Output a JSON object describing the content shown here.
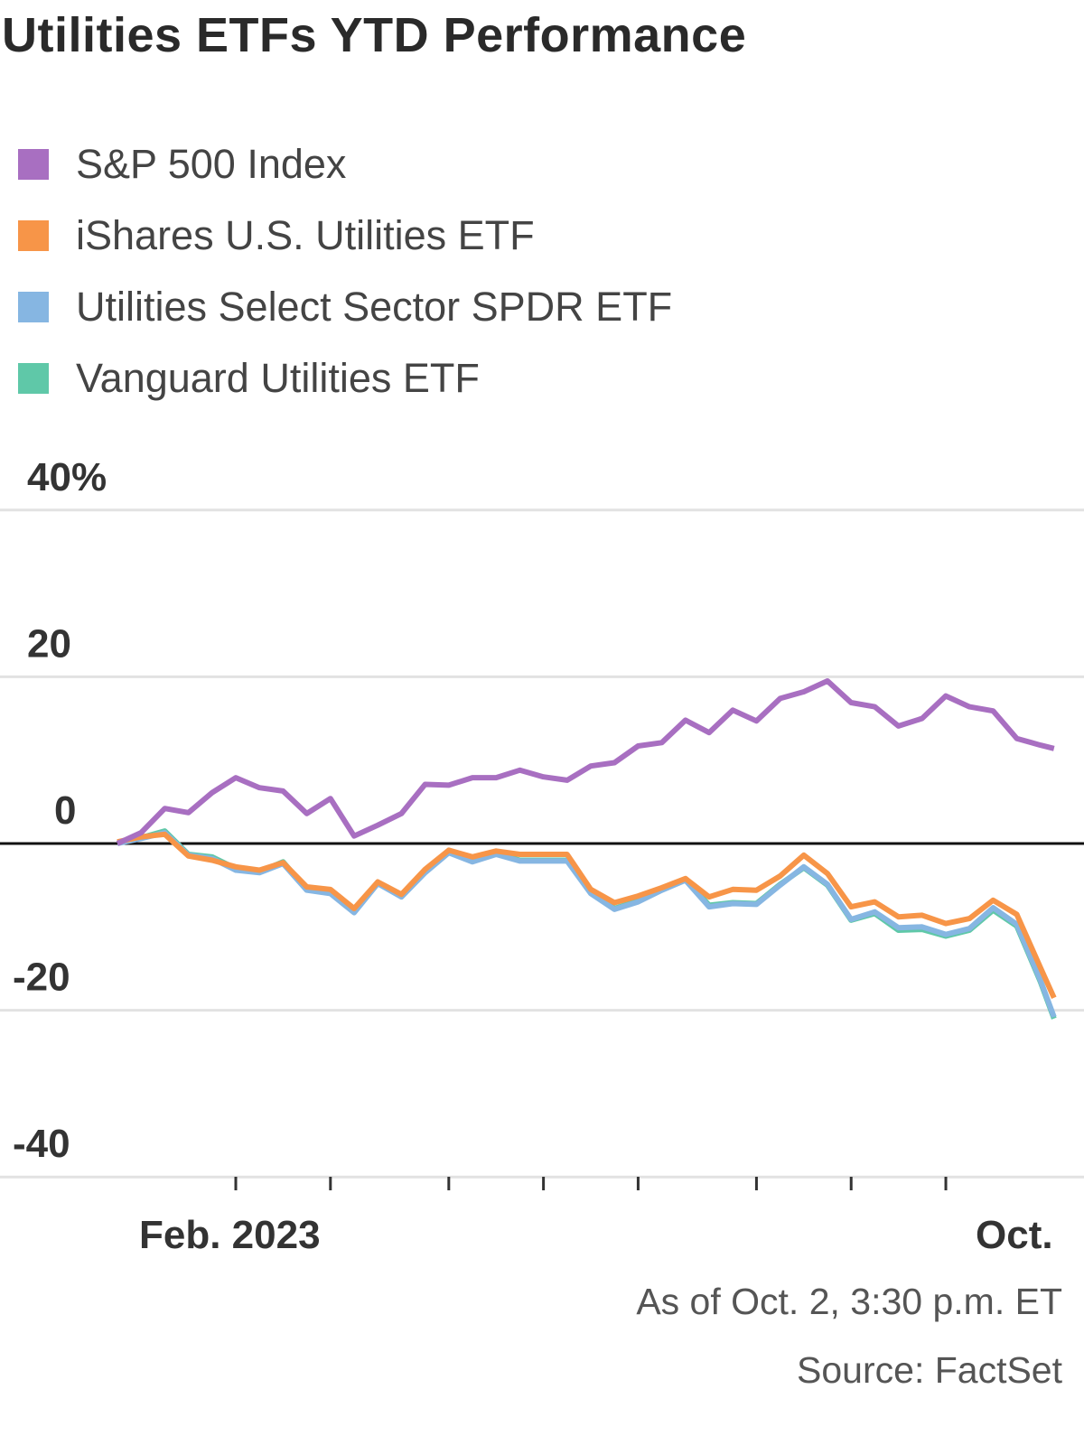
{
  "chart_data": {
    "type": "line",
    "title": "Utilities ETFs YTD Performance",
    "ylim": [
      -40,
      40
    ],
    "yticks": [
      {
        "value": 40,
        "label": "40%"
      },
      {
        "value": 20,
        "label": "20"
      },
      {
        "value": 0,
        "label": "0"
      },
      {
        "value": -20,
        "label": "-20"
      },
      {
        "value": -40,
        "label": "-40"
      }
    ],
    "xticks": [
      {
        "date": "2023-02-02",
        "label": "Feb. 2023"
      },
      {
        "date": "2023-03-02",
        "label": ""
      },
      {
        "date": "2023-04-06",
        "label": ""
      },
      {
        "date": "2023-05-04",
        "label": ""
      },
      {
        "date": "2023-06-01",
        "label": ""
      },
      {
        "date": "2023-07-06",
        "label": ""
      },
      {
        "date": "2023-08-03",
        "label": ""
      },
      {
        "date": "2023-08-31",
        "label": ""
      },
      {
        "date": "2023-10-02",
        "label": "Oct.",
        "tick": false
      }
    ],
    "grid": true,
    "legend_placement": "top-left",
    "x": [
      "2022-12-29",
      "2023-01-05",
      "2023-01-12",
      "2023-01-19",
      "2023-01-26",
      "2023-02-02",
      "2023-02-09",
      "2023-02-16",
      "2023-02-23",
      "2023-03-02",
      "2023-03-09",
      "2023-03-16",
      "2023-03-23",
      "2023-03-30",
      "2023-04-06",
      "2023-04-13",
      "2023-04-20",
      "2023-04-27",
      "2023-05-04",
      "2023-05-11",
      "2023-05-18",
      "2023-05-25",
      "2023-06-01",
      "2023-06-08",
      "2023-06-15",
      "2023-06-22",
      "2023-06-29",
      "2023-07-06",
      "2023-07-13",
      "2023-07-20",
      "2023-07-27",
      "2023-08-03",
      "2023-08-10",
      "2023-08-17",
      "2023-08-24",
      "2023-08-31",
      "2023-09-07",
      "2023-09-14",
      "2023-09-21",
      "2023-09-28",
      "2023-10-02"
    ],
    "series": [
      {
        "name": "S&P 500 Index",
        "color": "#a86fc1",
        "values": [
          0,
          1.3,
          4.2,
          3.7,
          6.1,
          7.9,
          6.7,
          6.3,
          3.6,
          5.4,
          0.9,
          2.2,
          3.6,
          7.1,
          7.0,
          7.9,
          7.9,
          8.8,
          8.0,
          7.6,
          9.3,
          9.7,
          11.7,
          12.1,
          14.8,
          13.3,
          16.0,
          14.7,
          17.4,
          18.2,
          19.5,
          16.9,
          16.4,
          14.1,
          15.0,
          17.7,
          16.4,
          15.9,
          12.6,
          11.8,
          11.4
        ]
      },
      {
        "name": "Vanguard Utilities ETF",
        "color": "#5fc8a8",
        "values": [
          0.1,
          0.7,
          1.5,
          -1.3,
          -1.6,
          -3.0,
          -3.4,
          -2.2,
          -5.5,
          -5.9,
          -8.2,
          -4.7,
          -6.3,
          -3.4,
          -1.0,
          -2.1,
          -1.2,
          -2.0,
          -2.0,
          -2.0,
          -5.9,
          -7.8,
          -6.9,
          -5.5,
          -4.3,
          -7.4,
          -7.1,
          -7.2,
          -4.9,
          -2.9,
          -5.0,
          -9.2,
          -8.4,
          -10.4,
          -10.3,
          -11.1,
          -10.4,
          -8.0,
          -9.9,
          -16.6,
          -21.0
        ]
      },
      {
        "name": "Utilities Select Sector SPDR ETF",
        "color": "#86b6e2",
        "values": [
          0,
          0.6,
          1.3,
          -1.4,
          -1.8,
          -3.2,
          -3.5,
          -2.4,
          -5.6,
          -6.0,
          -8.3,
          -4.8,
          -6.4,
          -3.5,
          -1.1,
          -2.2,
          -1.3,
          -2.1,
          -2.1,
          -2.1,
          -6.0,
          -7.9,
          -7.0,
          -5.6,
          -4.4,
          -7.6,
          -7.2,
          -7.3,
          -5.0,
          -2.8,
          -4.9,
          -9.1,
          -8.2,
          -10.1,
          -10.0,
          -10.9,
          -10.2,
          -7.7,
          -9.7,
          -16.4,
          -20.8
        ]
      },
      {
        "name": "iShares U.S. Utilities ETF",
        "color": "#f79548",
        "values": [
          0.2,
          0.8,
          1.1,
          -1.5,
          -2.0,
          -2.8,
          -3.2,
          -2.3,
          -5.2,
          -5.5,
          -7.8,
          -4.6,
          -6.1,
          -3.1,
          -0.8,
          -1.6,
          -0.9,
          -1.3,
          -1.3,
          -1.3,
          -5.5,
          -7.1,
          -6.3,
          -5.3,
          -4.2,
          -6.4,
          -5.5,
          -5.6,
          -3.9,
          -1.4,
          -3.6,
          -7.6,
          -7.0,
          -8.8,
          -8.6,
          -9.6,
          -9.0,
          -6.8,
          -8.5,
          -14.9,
          -18.5
        ]
      }
    ],
    "legend_order": [
      "S&P 500 Index",
      "iShares U.S. Utilities ETF",
      "Utilities Select Sector SPDR ETF",
      "Vanguard Utilities ETF"
    ],
    "notes": [
      "As of Oct. 2, 3:30 p.m. ET",
      "Source: FactSet"
    ]
  }
}
